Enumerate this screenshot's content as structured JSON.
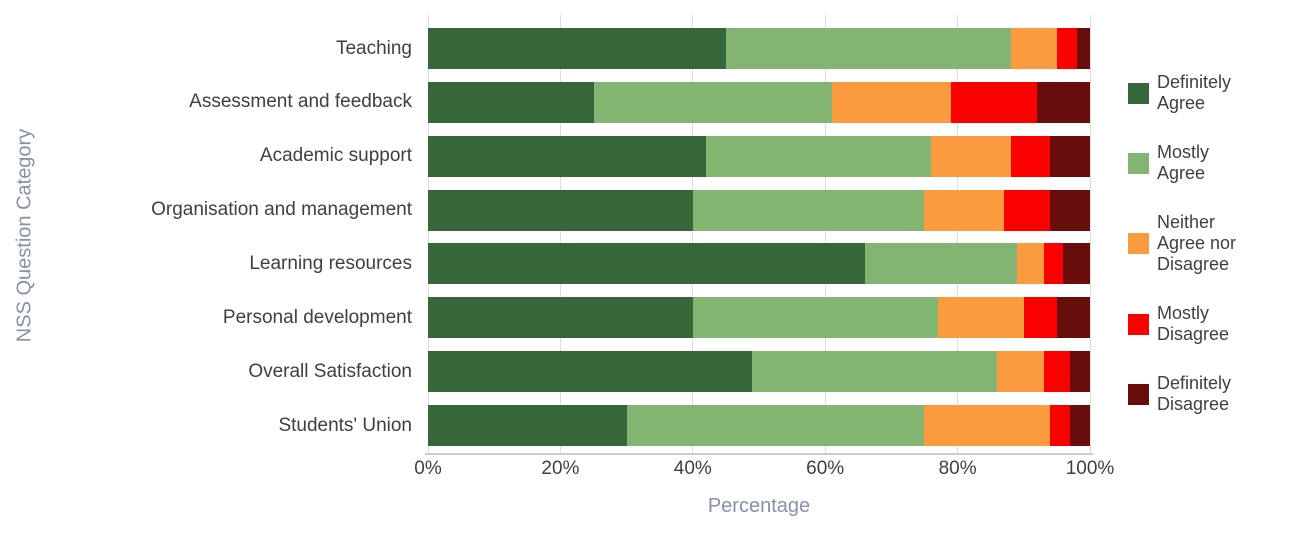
{
  "chart_data": {
    "type": "bar",
    "orientation": "horizontal",
    "stacked": true,
    "title": "",
    "xlabel": "Percentage",
    "ylabel": "NSS Question Category",
    "xlim": [
      0,
      100
    ],
    "grid": "vertical",
    "legend_position": "right",
    "x_ticks": [
      {
        "value": 0,
        "label": "0%"
      },
      {
        "value": 20,
        "label": "20%"
      },
      {
        "value": 40,
        "label": "40%"
      },
      {
        "value": 60,
        "label": "60%"
      },
      {
        "value": 80,
        "label": "80%"
      },
      {
        "value": 100,
        "label": "100%"
      }
    ],
    "categories": [
      "Teaching",
      "Assessment and feedback",
      "Academic support",
      "Organisation and management",
      "Learning resources",
      "Personal development",
      "Overall Satisfaction",
      "Students' Union"
    ],
    "series": [
      {
        "name": "Definitely Agree",
        "color": "#35673a",
        "values": [
          45,
          25,
          42,
          40,
          66,
          40,
          49,
          30
        ]
      },
      {
        "name": "Mostly Agree",
        "color": "#83b471",
        "values": [
          43,
          36,
          34,
          35,
          23,
          37,
          37,
          45
        ]
      },
      {
        "name": "Neither Agree nor Disagree",
        "color": "#f99b3e",
        "values": [
          7,
          18,
          12,
          12,
          4,
          13,
          7,
          19
        ]
      },
      {
        "name": "Mostly Disagree",
        "color": "#fa0000",
        "values": [
          3,
          13,
          6,
          7,
          3,
          5,
          4,
          3
        ]
      },
      {
        "name": "Definitely Disagree",
        "color": "#690c0c",
        "values": [
          2,
          8,
          6,
          6,
          4,
          5,
          3,
          3
        ]
      }
    ]
  },
  "legend": {
    "items": [
      {
        "lines": [
          "Definitely",
          "Agree"
        ],
        "color": "#35673a"
      },
      {
        "lines": [
          "Mostly",
          "Agree"
        ],
        "color": "#83b471"
      },
      {
        "lines": [
          "Neither",
          "Agree nor",
          "Disagree"
        ],
        "color": "#f99b3e"
      },
      {
        "lines": [
          "Mostly",
          "Disagree"
        ],
        "color": "#fa0000"
      },
      {
        "lines": [
          "Definitely",
          "Disagree"
        ],
        "color": "#690c0c"
      }
    ]
  },
  "style": {
    "gridline_color": "#dadde3",
    "axis_line_color": "#c9cdd4",
    "tick_text_color": "#3c4047",
    "axis_title_color": "#8790ad",
    "background": "#ffffff"
  }
}
